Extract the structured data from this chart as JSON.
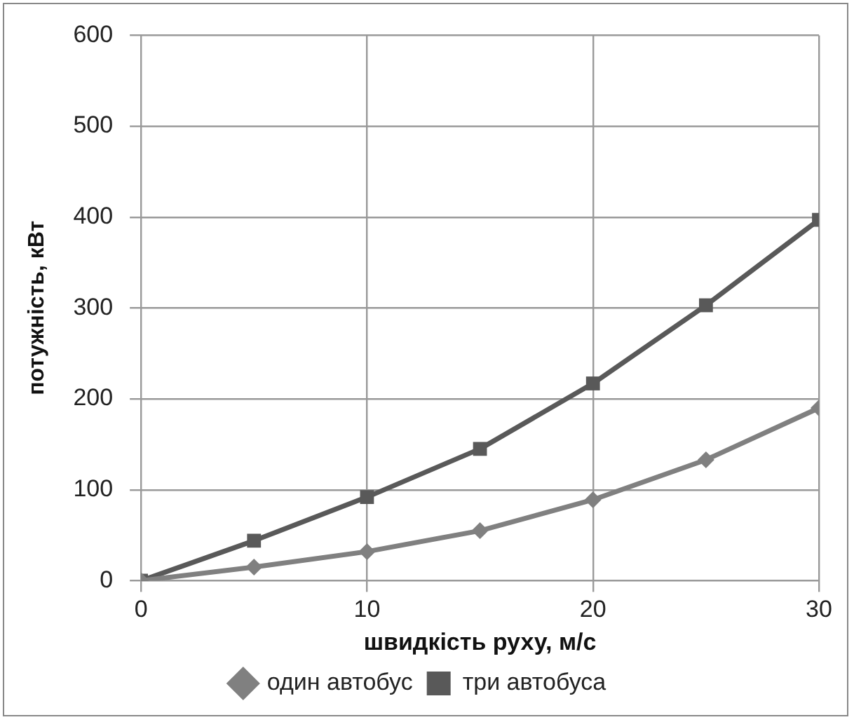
{
  "chart_data": {
    "type": "line",
    "xlabel": "швидкість руху, м/с",
    "ylabel": "потужність, кВт",
    "x": [
      0,
      5,
      10,
      15,
      20,
      25,
      30
    ],
    "series": [
      {
        "name": "один автобус",
        "color": "#808080",
        "marker": "diamond",
        "values": [
          0,
          15,
          32,
          55,
          89,
          133,
          190
        ]
      },
      {
        "name": "три автобуса",
        "color": "#595959",
        "marker": "square",
        "values": [
          0,
          44,
          92,
          145,
          217,
          303,
          397
        ]
      }
    ],
    "xlim": [
      0,
      30
    ],
    "xticks": [
      0,
      10,
      20,
      30
    ],
    "ylim": [
      0,
      600
    ],
    "yticks": [
      0,
      100,
      200,
      300,
      400,
      500,
      600
    ],
    "grid": true,
    "legend": "bottom"
  }
}
